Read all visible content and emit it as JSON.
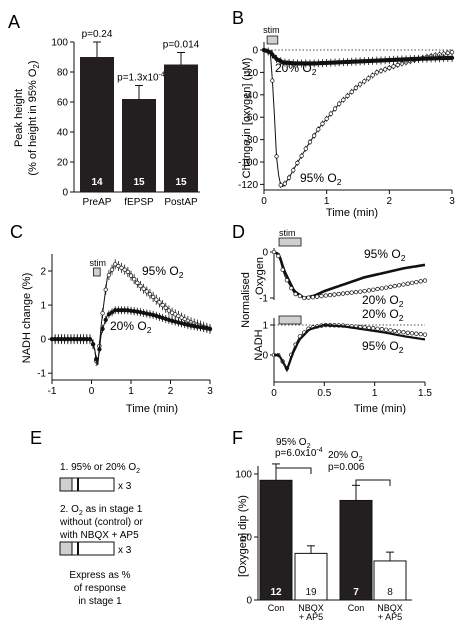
{
  "panels": [
    {
      "letter": "A"
    },
    {
      "letter": "B"
    },
    {
      "letter": "C"
    },
    {
      "letter": "D"
    },
    {
      "letter": "E"
    },
    {
      "letter": "F"
    }
  ],
  "chart_data": [
    {
      "id": "A",
      "type": "bar",
      "categories": [
        "PreAP",
        "fEPSP",
        "PostAP"
      ],
      "values": [
        90,
        62,
        85
      ],
      "errors": [
        10,
        9,
        8
      ],
      "n_labels": [
        "14",
        "15",
        "15"
      ],
      "p_labels": [
        "p=0.24",
        "p=1.3x10",
        "p=0.014"
      ],
      "p_exponent": "-4",
      "ylabel_line1": "Peak height",
      "ylabel_line2": "(% of height in 95% O",
      "ylabel_sub": "2",
      "ylabel_close": ")",
      "yticks": [
        "0",
        "20",
        "40",
        "60",
        "80",
        "100"
      ],
      "ylim": [
        0,
        100
      ],
      "bar_color": "#231f20"
    },
    {
      "id": "B",
      "type": "line",
      "xlabel": "Time (min)",
      "ylabel": "Change in [oxygen] (μM)",
      "xlim": [
        0,
        3
      ],
      "ylim": [
        -125,
        0
      ],
      "xticks": [
        "0",
        "1",
        "2",
        "3"
      ],
      "yticks": [
        "0",
        "-20",
        "-40",
        "-60",
        "-80",
        "-100",
        "-120"
      ],
      "stim_label": "stim",
      "stim_range": [
        0.05,
        0.22
      ],
      "series": [
        {
          "name": "95% O",
          "sub": "2",
          "x": [
            0,
            0.1,
            0.15,
            0.2,
            0.25,
            0.3,
            0.4,
            0.5,
            0.7,
            0.9,
            1.2,
            1.5,
            1.8,
            2.2,
            2.6,
            3.0
          ],
          "y": [
            0,
            -2,
            -40,
            -95,
            -120,
            -122,
            -114,
            -104,
            -85,
            -68,
            -48,
            -32,
            -20,
            -12,
            -6,
            -2
          ]
        },
        {
          "name": "20% O",
          "sub": "2",
          "x": [
            0,
            0.1,
            0.2,
            0.3,
            0.5,
            0.8,
            1.2,
            1.6,
            2.0,
            2.4,
            3.0
          ],
          "y": [
            0,
            -2,
            -8,
            -11,
            -12,
            -12,
            -11,
            -10,
            -9,
            -8,
            -7
          ]
        }
      ]
    },
    {
      "id": "C",
      "type": "line",
      "xlabel": "Time (min)",
      "ylabel": "NADH change (%)",
      "xlim": [
        -1,
        3
      ],
      "ylim": [
        -1.2,
        2.5
      ],
      "xticks": [
        "-1",
        "0",
        "1",
        "2",
        "3"
      ],
      "yticks": [
        "-1",
        "0",
        "1",
        "2"
      ],
      "stim_label": "stim",
      "stim_range": [
        0.05,
        0.22
      ],
      "series": [
        {
          "name": "95% O",
          "sub": "2",
          "x": [
            -1,
            -0.5,
            0,
            0.08,
            0.15,
            0.25,
            0.4,
            0.6,
            0.9,
            1.2,
            1.6,
            2.0,
            2.5,
            3.0
          ],
          "y": [
            0,
            0,
            0,
            -0.3,
            -0.9,
            0.5,
            1.8,
            2.2,
            2.0,
            1.6,
            1.2,
            0.8,
            0.5,
            0.3
          ]
        },
        {
          "name": "20% O",
          "sub": "2",
          "x": [
            -1,
            -0.5,
            0,
            0.08,
            0.15,
            0.25,
            0.4,
            0.6,
            0.9,
            1.2,
            1.6,
            2.0,
            2.5,
            3.0
          ],
          "y": [
            0,
            0,
            0,
            -0.3,
            -0.8,
            0.2,
            0.7,
            0.85,
            0.85,
            0.8,
            0.7,
            0.55,
            0.4,
            0.3
          ]
        }
      ]
    },
    {
      "id": "D",
      "type": "line",
      "xlabel": "Time (min)",
      "ylabel_top_1": "Normalised",
      "ylabel_top_2": "Oxygen",
      "ylabel_bottom": "NADH",
      "xlim": [
        0,
        1.5
      ],
      "xticks": [
        "0",
        "0.5",
        "1",
        "1.5"
      ],
      "yticks_top": [
        "0",
        "-1"
      ],
      "yticks_bottom": [
        "1",
        "0"
      ],
      "stim_label": "stim",
      "top_series": [
        {
          "name": "95% O",
          "sub": "2",
          "x": [
            0,
            0.05,
            0.1,
            0.2,
            0.3,
            0.4,
            0.5,
            0.7,
            0.9,
            1.1,
            1.3,
            1.5
          ],
          "y": [
            0,
            -0.05,
            -0.4,
            -0.85,
            -1.0,
            -0.95,
            -0.85,
            -0.7,
            -0.55,
            -0.45,
            -0.35,
            -0.28
          ]
        },
        {
          "name": "20% O",
          "sub": "2",
          "x": [
            0,
            0.05,
            0.1,
            0.2,
            0.3,
            0.4,
            0.5,
            0.7,
            0.9,
            1.1,
            1.3,
            1.5
          ],
          "y": [
            0,
            -0.1,
            -0.5,
            -0.9,
            -1.0,
            -0.98,
            -0.95,
            -0.9,
            -0.85,
            -0.78,
            -0.7,
            -0.62
          ]
        }
      ],
      "bottom_series": [
        {
          "name": "20% O",
          "sub": "2",
          "x": [
            0,
            0.05,
            0.1,
            0.13,
            0.18,
            0.25,
            0.35,
            0.5,
            0.7,
            0.9,
            1.1,
            1.3,
            1.5
          ],
          "y": [
            0,
            0,
            -0.3,
            -0.45,
            0.1,
            0.6,
            0.9,
            1.0,
            0.98,
            0.92,
            0.85,
            0.75,
            0.68
          ]
        },
        {
          "name": "95% O",
          "sub": "2",
          "x": [
            0,
            0.05,
            0.1,
            0.13,
            0.18,
            0.25,
            0.35,
            0.5,
            0.7,
            0.9,
            1.1,
            1.3,
            1.5
          ],
          "y": [
            0,
            0,
            -0.3,
            -0.5,
            0.0,
            0.5,
            0.85,
            1.0,
            0.95,
            0.85,
            0.75,
            0.62,
            0.52
          ]
        }
      ]
    },
    {
      "id": "F",
      "type": "bar",
      "ylabel": "[Oxygen] dip (%)",
      "ylim": [
        0,
        100
      ],
      "yticks": [
        "0",
        "50",
        "100"
      ],
      "categories": [
        "Con",
        "NBQX",
        "Con",
        "NBQX"
      ],
      "category_line2": [
        "",
        "+ AP5",
        "",
        "+ AP5"
      ],
      "values": [
        95,
        37,
        79,
        31
      ],
      "errors": [
        13,
        6,
        12,
        7
      ],
      "n_labels": [
        "12",
        "19",
        "7",
        "8"
      ],
      "bar_fills": [
        "#231f20",
        "#ffffff",
        "#231f20",
        "#ffffff"
      ],
      "groups": [
        {
          "title": "95% O",
          "sub": "2",
          "p": "p=6.0x10",
          "p_exp": "-4"
        },
        {
          "title": "20% O",
          "sub": "2",
          "p": "p=0.006",
          "p_exp": ""
        }
      ]
    }
  ],
  "schematic": {
    "step1": "1. 95% or 20% O",
    "step1_sub": "2",
    "times": "x 3",
    "step2_l1": "2. O",
    "step2_l1_sub": "2",
    "step2_l1_rest": " as in stage 1",
    "step2_l2": "without (control) or",
    "step2_l3": "with NBQX + AP5",
    "express_l1": "Express as %",
    "express_l2": "of response",
    "express_l3": "in stage 1"
  }
}
